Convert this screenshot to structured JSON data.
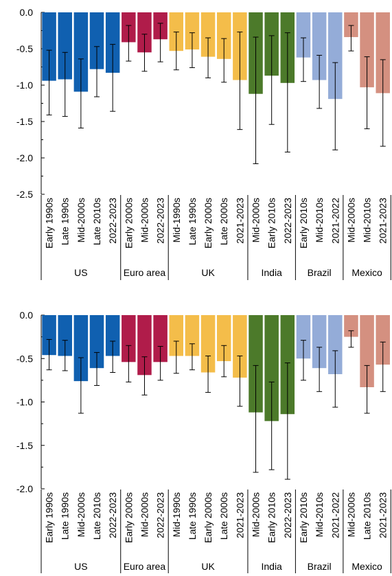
{
  "colors": {
    "US": "#1060b0",
    "Euro area": "#b01c4a",
    "UK": "#f4bd4a",
    "India": "#4c7a2a",
    "Brazil": "#94acd8",
    "Mexico": "#d49080"
  },
  "chart_data": [
    {
      "type": "bar",
      "ylim": [
        -2.5,
        0.0
      ],
      "yticks": [
        0.0,
        -0.5,
        -1.0,
        -1.5,
        -2.0,
        -2.5
      ],
      "ytick_labels": [
        "0.0",
        "-0.5",
        "-1.0",
        "-1.5",
        "-2.0",
        "-2.5"
      ],
      "groups": [
        {
          "name": "US",
          "categories": [
            "Early 1990s",
            "Late 1990s",
            "Mid-2000s",
            "Late 2010s",
            "2022-2023"
          ],
          "values": [
            -0.94,
            -0.92,
            -1.09,
            -0.78,
            -0.83
          ],
          "err_low": [
            -1.41,
            -1.43,
            -1.59,
            -1.16,
            -1.36
          ],
          "err_high": [
            -0.52,
            -0.55,
            -0.64,
            -0.47,
            -0.44
          ]
        },
        {
          "name": "Euro area",
          "categories": [
            "Early 2000s",
            "Mid-2000s",
            "2022-2023"
          ],
          "values": [
            -0.41,
            -0.55,
            -0.37
          ],
          "err_low": [
            -0.67,
            -0.81,
            -0.68
          ],
          "err_high": [
            -0.18,
            -0.3,
            -0.15
          ]
        },
        {
          "name": "UK",
          "categories": [
            "Mid-1990s",
            "Late 1990s",
            "Early 2000s",
            "Late 2000s",
            "2021-2023"
          ],
          "values": [
            -0.53,
            -0.51,
            -0.61,
            -0.64,
            -0.93
          ],
          "err_low": [
            -0.79,
            -0.76,
            -0.9,
            -0.96,
            -1.61
          ],
          "err_high": [
            -0.27,
            -0.28,
            -0.35,
            -0.36,
            -0.27
          ]
        },
        {
          "name": "India",
          "categories": [
            "Mid-2000s",
            "Early 2010s",
            "2022-2023"
          ],
          "values": [
            -1.12,
            -0.87,
            -0.97
          ],
          "err_low": [
            -2.08,
            -1.54,
            -1.92
          ],
          "err_high": [
            -0.34,
            -0.32,
            -0.28
          ]
        },
        {
          "name": "Brazil",
          "categories": [
            "Early 2010s",
            "Mid-2010s",
            "2021-2022"
          ],
          "values": [
            -0.62,
            -0.93,
            -1.19
          ],
          "err_low": [
            -0.95,
            -1.32,
            -1.89
          ],
          "err_high": [
            -0.35,
            -0.59,
            -0.69
          ]
        },
        {
          "name": "Mexico",
          "categories": [
            "Mid-2000s",
            "Mid-2010s",
            "2021-2023"
          ],
          "values": [
            -0.34,
            -1.03,
            -1.11
          ],
          "err_low": [
            -0.53,
            -1.6,
            -1.84
          ],
          "err_high": [
            -0.18,
            -0.61,
            -0.65
          ]
        }
      ]
    },
    {
      "type": "bar",
      "ylim": [
        -2.0,
        0.0
      ],
      "yticks": [
        0.0,
        -0.5,
        -1.0,
        -1.5,
        -2.0
      ],
      "ytick_labels": [
        "0.0",
        "-0.5",
        "-1.0",
        "-1.5",
        "-2.0"
      ],
      "groups": [
        {
          "name": "US",
          "categories": [
            "Early 1990s",
            "Late 1990s",
            "Mid-2000s",
            "Late 2010s",
            "2022-2023"
          ],
          "values": [
            -0.46,
            -0.47,
            -0.76,
            -0.61,
            -0.47
          ],
          "err_low": [
            -0.63,
            -0.64,
            -1.13,
            -0.81,
            -0.66
          ],
          "err_high": [
            -0.28,
            -0.29,
            -0.49,
            -0.43,
            -0.3
          ]
        },
        {
          "name": "Euro area",
          "categories": [
            "Early 2000s",
            "Mid-2000s",
            "2022-2023"
          ],
          "values": [
            -0.54,
            -0.69,
            -0.54
          ],
          "err_low": [
            -0.77,
            -0.92,
            -0.75
          ],
          "err_high": [
            -0.35,
            -0.48,
            -0.36
          ]
        },
        {
          "name": "UK",
          "categories": [
            "Mid-1990s",
            "Late 1990s",
            "Early 2000s",
            "Late 2000s",
            "2021-2023"
          ],
          "values": [
            -0.47,
            -0.47,
            -0.66,
            -0.53,
            -0.72
          ],
          "err_low": [
            -0.67,
            -0.63,
            -0.89,
            -0.71,
            -1.05
          ],
          "err_high": [
            -0.3,
            -0.33,
            -0.47,
            -0.35,
            -0.47
          ]
        },
        {
          "name": "India",
          "categories": [
            "Mid-2000s",
            "Early 2010s",
            "2022-2023"
          ],
          "values": [
            -1.12,
            -1.22,
            -1.14
          ],
          "err_low": [
            -1.81,
            -1.78,
            -1.89
          ],
          "err_high": [
            -0.58,
            -0.77,
            -0.55
          ]
        },
        {
          "name": "Brazil",
          "categories": [
            "Early 2010s",
            "Mid-2010s",
            "2021-2022"
          ],
          "values": [
            -0.5,
            -0.61,
            -0.68
          ],
          "err_low": [
            -0.75,
            -0.88,
            -1.06
          ],
          "err_high": [
            -0.29,
            -0.37,
            -0.41
          ]
        },
        {
          "name": "Mexico",
          "categories": [
            "Mid-2000s",
            "Late 2010s",
            "2021-2023"
          ],
          "values": [
            -0.25,
            -0.83,
            -0.57
          ],
          "err_low": [
            -0.37,
            -1.13,
            -0.88
          ],
          "err_high": [
            -0.18,
            -0.58,
            -0.31
          ]
        }
      ]
    }
  ]
}
